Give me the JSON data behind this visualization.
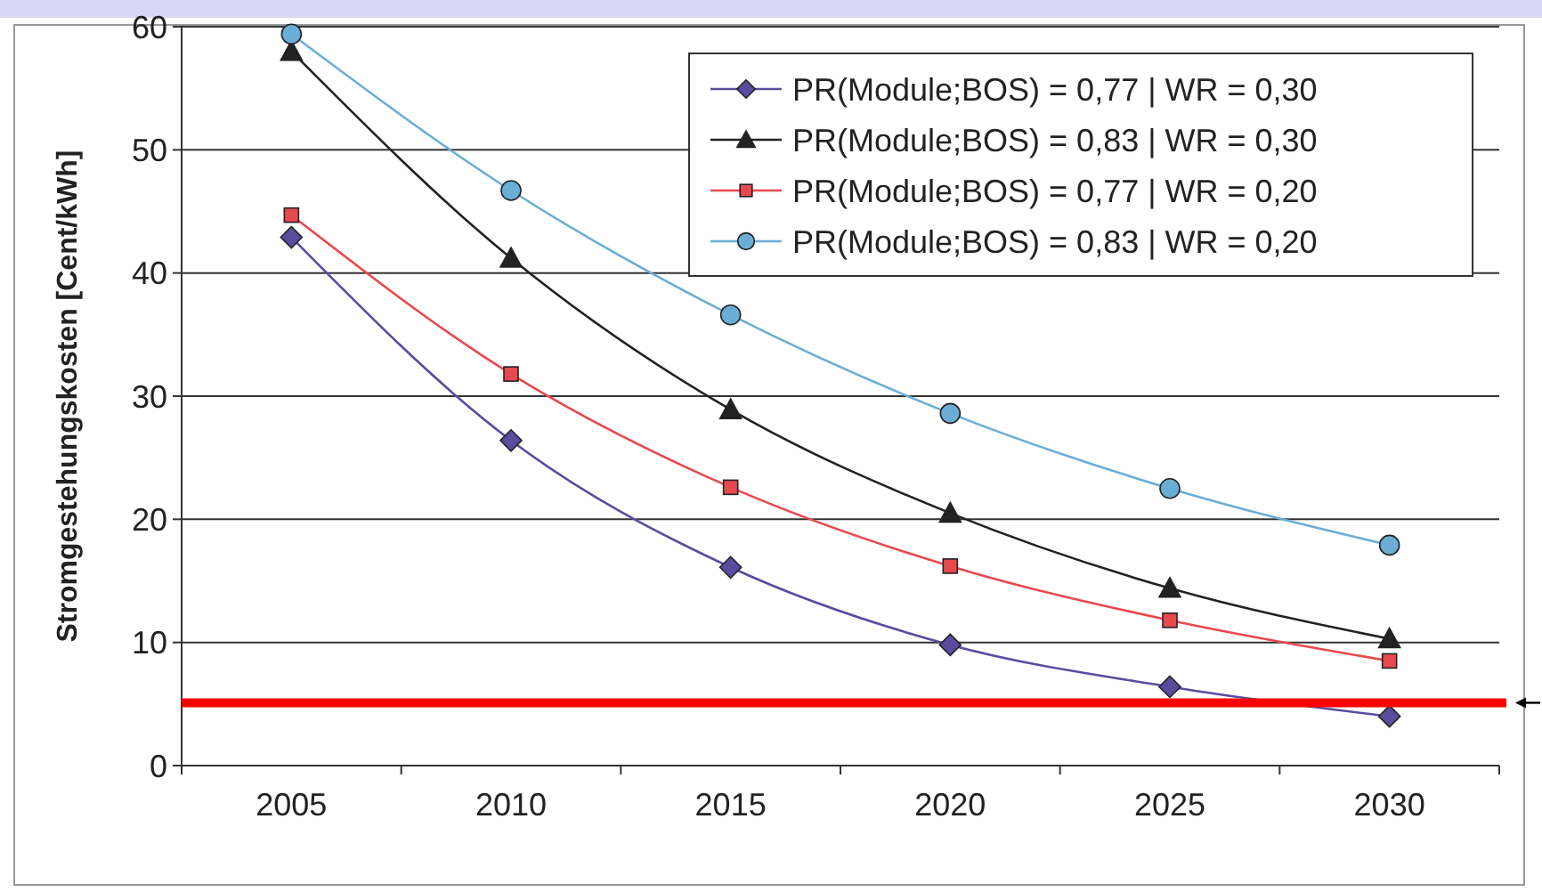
{
  "chart_data": {
    "type": "line",
    "ylabel": "Stromgestehungskosten [Cent/kWh]",
    "categories": [
      "2005",
      "2010",
      "2015",
      "2020",
      "2025",
      "2030"
    ],
    "ylim": [
      0,
      60
    ],
    "yticks": [
      0,
      10,
      20,
      30,
      40,
      50,
      60
    ],
    "grid": "y",
    "legend": "top right",
    "series": [
      {
        "name": "PR(Module;BOS) = 0,77 | WR = 0,30",
        "color": "#5b4b9e",
        "marker": "diamond",
        "values": [
          42.9,
          26.4,
          16.1,
          9.8,
          6.4,
          4.0
        ]
      },
      {
        "name": "PR(Module;BOS) = 0,83 | WR = 0,30",
        "color": "#222222",
        "marker": "triangle",
        "values": [
          58.0,
          41.2,
          28.9,
          20.5,
          14.4,
          10.3
        ]
      },
      {
        "name": "PR(Module;BOS) = 0,77 | WR = 0,20",
        "color": "#e8494f",
        "marker": "square",
        "values": [
          44.7,
          31.8,
          22.6,
          16.2,
          11.8,
          8.5
        ]
      },
      {
        "name": "PR(Module;BOS) = 0,83 | WR = 0,20",
        "color": "#6aaed6",
        "marker": "circle",
        "values": [
          59.4,
          46.7,
          36.6,
          28.6,
          22.5,
          17.9
        ]
      }
    ],
    "ref_lines": [
      {
        "axis": "y",
        "value": 5.1,
        "label": null,
        "color": "#ff0000"
      }
    ]
  }
}
